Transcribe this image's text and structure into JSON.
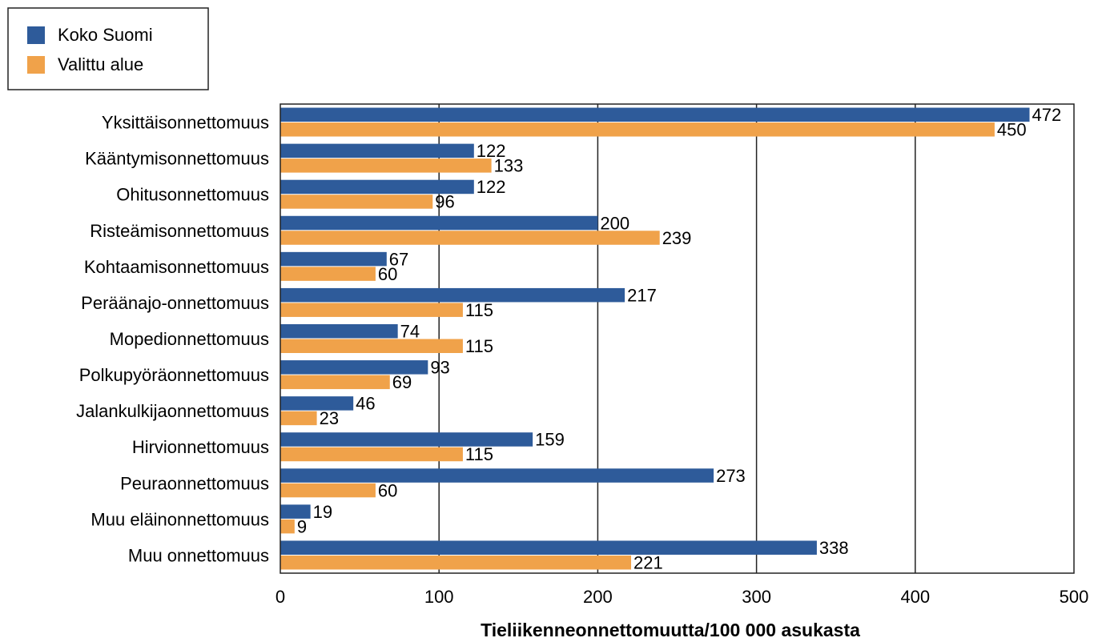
{
  "chart_data": {
    "type": "bar",
    "orientation": "horizontal",
    "categories": [
      "Yksittäisonnettomuus",
      "Kääntymisonnettomuus",
      "Ohitusonnettomuus",
      "Risteämisonnettomuus",
      "Kohtaamisonnettomuus",
      "Peräänajo-onnettomuus",
      "Mopedionnettomuus",
      "Polkupyöräonnettomuus",
      "Jalankulkijaonnettomuus",
      "Hirvionnettomuus",
      "Peuraonnettomuus",
      "Muu eläinonnettomuus",
      "Muu onnettomuus"
    ],
    "series": [
      {
        "name": "Koko Suomi",
        "color": "#2e5b9a",
        "values": [
          472,
          122,
          122,
          200,
          67,
          217,
          74,
          93,
          46,
          159,
          273,
          19,
          338
        ]
      },
      {
        "name": "Valittu alue",
        "color": "#f0a24a",
        "values": [
          450,
          133,
          96,
          239,
          60,
          115,
          115,
          69,
          23,
          115,
          60,
          9,
          221
        ]
      }
    ],
    "xlim": [
      0,
      500
    ],
    "xticks": [
      0,
      100,
      200,
      300,
      400,
      500
    ],
    "xlabel": "Tieliikenneonnettomuutta/100 000 asukasta",
    "ylabel": "",
    "title": "",
    "grid": "vertical",
    "legend_position": "top-left",
    "data_labels": true
  }
}
